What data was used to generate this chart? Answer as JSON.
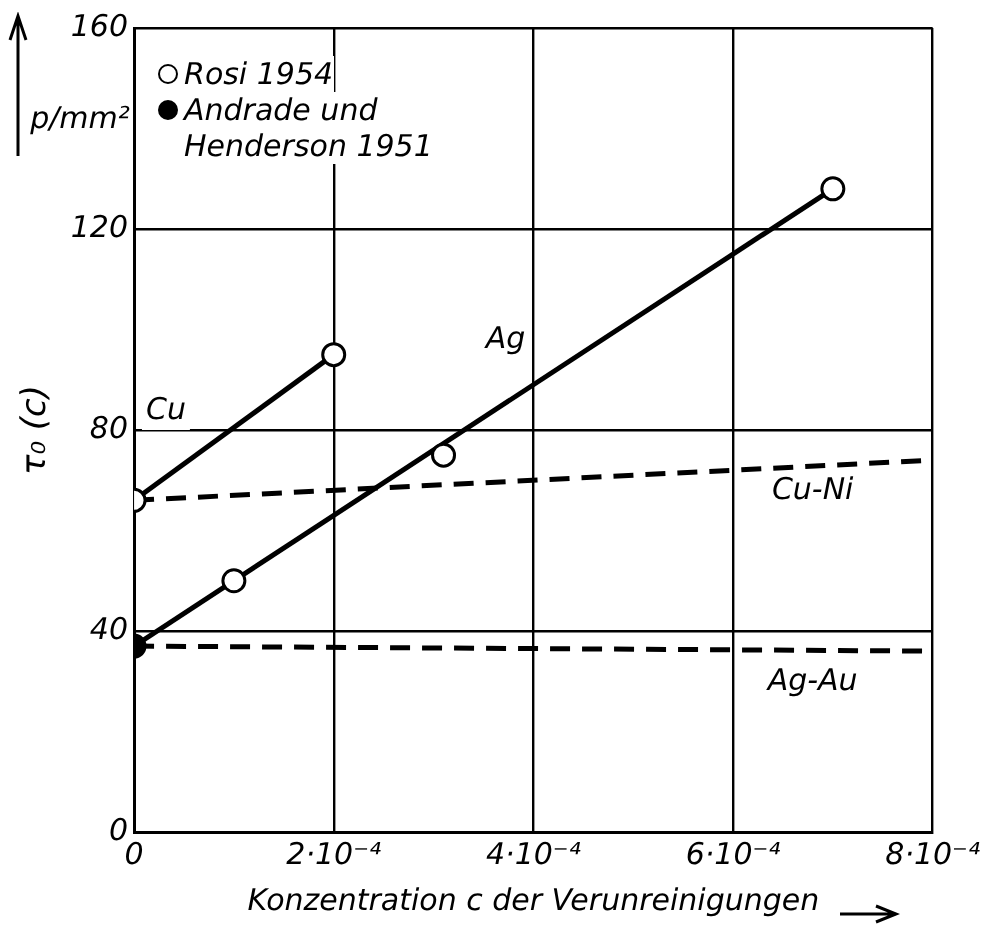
{
  "chart_data": {
    "type": "line",
    "xlabel": "Konzentration c der Verunreinigungen",
    "ylabel": "τ₀ (c)",
    "annotations": [
      "p/mm²"
    ],
    "xlim": [
      0,
      0.0008
    ],
    "xticks": [
      0,
      {
        "value": 0.0002,
        "label": "2·10⁻⁴"
      },
      {
        "value": 0.0004,
        "label": "4·10⁻⁴"
      },
      {
        "value": 0.0006,
        "label": "6·10⁻⁴"
      },
      {
        "value": 0.0008,
        "label": "8·10⁻⁴"
      }
    ],
    "ylim": [
      0,
      160
    ],
    "yticks": [
      0,
      40,
      80,
      120,
      160
    ],
    "grid": true,
    "legend": "top left",
    "series": [
      {
        "name": "Cu",
        "color": "#000000",
        "line_style": "solid",
        "marker": "none",
        "x": [
          0,
          0.0002
        ],
        "values": [
          66,
          95
        ]
      },
      {
        "name": "Ag",
        "color": "#000000",
        "line_style": "solid",
        "marker": "none",
        "x": [
          0,
          0.0007
        ],
        "values": [
          37,
          128
        ]
      },
      {
        "name": "Cu-Ni",
        "color": "#000000",
        "line_style": "dashed",
        "marker": "none",
        "x": [
          0,
          0.0008
        ],
        "values": [
          66,
          74
        ]
      },
      {
        "name": "Ag-Au",
        "color": "#000000",
        "line_style": "dashed",
        "marker": "none",
        "x": [
          0,
          0.0008
        ],
        "values": [
          37,
          36
        ]
      },
      {
        "name": "Rosi 1954",
        "type": "scatter",
        "color": "#ffffff",
        "marker": "circle",
        "x": [
          0,
          0.0002,
          0.0001,
          0.00031,
          0.0007
        ],
        "values": [
          66,
          95,
          50,
          75,
          128
        ]
      },
      {
        "name": "Andrade und Henderson 1951",
        "type": "scatter",
        "color": "#000000",
        "marker": "circle",
        "x": [
          0
        ],
        "values": [
          37
        ]
      }
    ]
  }
}
